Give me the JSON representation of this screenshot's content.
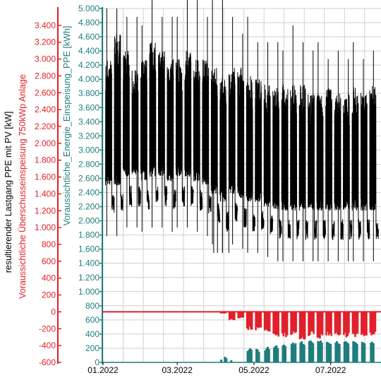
{
  "chart_data": {
    "type": "line",
    "x_ticks": [
      "01.2022",
      "03.2022",
      "05.2022",
      "07.2022"
    ],
    "x_range": [
      "2022-01-01",
      "2022-08-10"
    ],
    "axes": [
      {
        "id": "left_outer",
        "label": "resultierender Lastgang PPE mit PV [kW]",
        "color": "#000000",
        "range": [
          -600,
          3600
        ],
        "ticks": [
          -600,
          -400,
          -200,
          0,
          200,
          400,
          600,
          800,
          1000,
          1200,
          1400,
          1600,
          1800,
          2000,
          2200,
          2400,
          2600,
          2800,
          3000,
          3200,
          3400
        ]
      },
      {
        "id": "left_outer_red",
        "label": "Voraussichtliche Überschusseinspeisung 750kWp Anlage",
        "color": "#e0202a",
        "range": [
          -600,
          3600
        ],
        "ticks": [
          -600,
          -400,
          -200,
          0,
          200,
          400,
          600,
          800,
          1000,
          1200,
          1400,
          1600,
          1800,
          2000,
          2200,
          2400,
          2600,
          2800,
          3000,
          3200,
          3400
        ]
      },
      {
        "id": "right_inner",
        "label": "Voraussichtliche_Energie_Einspeisung_PPE [kWh]",
        "color": "#1f7d7d",
        "range": [
          0,
          5000
        ],
        "ticks": [
          0,
          200,
          400,
          600,
          800,
          1000,
          1200,
          1400,
          1600,
          1800,
          2000,
          2200,
          2400,
          2600,
          2800,
          3000,
          3200,
          3400,
          3600,
          3800,
          4000,
          4200,
          4400,
          4600,
          4800,
          5000
        ]
      }
    ],
    "tick_format": "German thousands separator",
    "grid": true,
    "series": [
      {
        "axis": "left_outer",
        "color": "#000000",
        "style": "dense load curve",
        "weekly_bands_kw": [
          {
            "week_start": "2022-01-03",
            "low": 1500,
            "high": 3000,
            "peak": 3600
          },
          {
            "week_start": "2022-01-10",
            "low": 1500,
            "high": 3300,
            "peak": 3600
          },
          {
            "week_start": "2022-01-17",
            "low": 1600,
            "high": 3100,
            "peak": 3500
          },
          {
            "week_start": "2022-01-24",
            "low": 1600,
            "high": 2900,
            "peak": 3500
          },
          {
            "week_start": "2022-01-31",
            "low": 1550,
            "high": 3000,
            "peak": 3400
          },
          {
            "week_start": "2022-02-07",
            "low": 1600,
            "high": 3200,
            "peak": 3800
          },
          {
            "week_start": "2022-02-14",
            "low": 1600,
            "high": 3100,
            "peak": 3500
          },
          {
            "week_start": "2022-02-21",
            "low": 1550,
            "high": 3000,
            "peak": 3500
          },
          {
            "week_start": "2022-02-28",
            "low": 1600,
            "high": 3000,
            "peak": 3500
          },
          {
            "week_start": "2022-03-07",
            "low": 1600,
            "high": 3100,
            "peak": 3800
          },
          {
            "week_start": "2022-03-14",
            "low": 1550,
            "high": 3000,
            "peak": 3800
          },
          {
            "week_start": "2022-03-21",
            "low": 1500,
            "high": 3000,
            "peak": 3500
          },
          {
            "week_start": "2022-03-28",
            "low": 1400,
            "high": 2900,
            "peak": 3800
          },
          {
            "week_start": "2022-04-04",
            "low": 1300,
            "high": 2800,
            "peak": 3800
          },
          {
            "week_start": "2022-04-11",
            "low": 1400,
            "high": 2900,
            "peak": 3500
          },
          {
            "week_start": "2022-04-18",
            "low": 1350,
            "high": 2900,
            "peak": 3300
          },
          {
            "week_start": "2022-04-25",
            "low": 1300,
            "high": 2800,
            "peak": 3500
          },
          {
            "week_start": "2022-05-02",
            "low": 1300,
            "high": 2800,
            "peak": 3200
          },
          {
            "week_start": "2022-05-09",
            "low": 1250,
            "high": 2700,
            "peak": 3200
          },
          {
            "week_start": "2022-05-16",
            "low": 1200,
            "high": 2700,
            "peak": 3200
          },
          {
            "week_start": "2022-05-23",
            "low": 1200,
            "high": 2700,
            "peak": 3100
          },
          {
            "week_start": "2022-05-30",
            "low": 1200,
            "high": 2700,
            "peak": 3400
          },
          {
            "week_start": "2022-06-06",
            "low": 1200,
            "high": 2700,
            "peak": 3200
          },
          {
            "week_start": "2022-06-13",
            "low": 1200,
            "high": 2600,
            "peak": 3100
          },
          {
            "week_start": "2022-06-20",
            "low": 1200,
            "high": 2600,
            "peak": 3200
          },
          {
            "week_start": "2022-06-27",
            "low": 1200,
            "high": 2700,
            "peak": 3000
          },
          {
            "week_start": "2022-07-04",
            "low": 1200,
            "high": 2600,
            "peak": 3100
          },
          {
            "week_start": "2022-07-11",
            "low": 1200,
            "high": 2600,
            "peak": 3000
          },
          {
            "week_start": "2022-07-18",
            "low": 1200,
            "high": 2700,
            "peak": 3200
          },
          {
            "week_start": "2022-07-25",
            "low": 1200,
            "high": 2600,
            "peak": 3000
          },
          {
            "week_start": "2022-08-01",
            "low": 1200,
            "high": 2700,
            "peak": 3100
          }
        ]
      },
      {
        "axis": "left_outer_red",
        "color": "#e0202a",
        "style": "surplus feed-in (negative)",
        "weekly_min_kw": [
          {
            "week_start": "2022-04-04",
            "min": -20
          },
          {
            "week_start": "2022-04-11",
            "min": -100
          },
          {
            "week_start": "2022-04-18",
            "min": -80
          },
          {
            "week_start": "2022-04-25",
            "min": -220
          },
          {
            "week_start": "2022-05-02",
            "min": -220
          },
          {
            "week_start": "2022-05-09",
            "min": -240
          },
          {
            "week_start": "2022-05-16",
            "min": -300
          },
          {
            "week_start": "2022-05-23",
            "min": -310
          },
          {
            "week_start": "2022-05-30",
            "min": -280
          },
          {
            "week_start": "2022-06-06",
            "min": -330
          },
          {
            "week_start": "2022-06-13",
            "min": -290
          },
          {
            "week_start": "2022-06-20",
            "min": -320
          },
          {
            "week_start": "2022-06-27",
            "min": -290
          },
          {
            "week_start": "2022-07-04",
            "min": -300
          },
          {
            "week_start": "2022-07-11",
            "min": -310
          },
          {
            "week_start": "2022-07-18",
            "min": -320
          },
          {
            "week_start": "2022-07-25",
            "min": -300
          },
          {
            "week_start": "2022-08-01",
            "min": -290
          }
        ]
      },
      {
        "axis": "right_inner",
        "color": "#1f7d7d",
        "style": "daily energy bars",
        "daily_kwh": [
          {
            "date": "2022-04-05",
            "value": 40
          },
          {
            "date": "2022-04-08",
            "value": 80
          },
          {
            "date": "2022-04-09",
            "value": 60
          },
          {
            "date": "2022-04-13",
            "value": 30
          },
          {
            "date": "2022-04-26",
            "value": 160
          },
          {
            "date": "2022-04-27",
            "value": 180
          },
          {
            "date": "2022-04-28",
            "value": 200
          },
          {
            "date": "2022-04-29",
            "value": 180
          },
          {
            "date": "2022-05-03",
            "value": 190
          },
          {
            "date": "2022-05-04",
            "value": 180
          },
          {
            "date": "2022-05-05",
            "value": 150
          },
          {
            "date": "2022-05-10",
            "value": 170
          },
          {
            "date": "2022-05-11",
            "value": 200
          },
          {
            "date": "2022-05-12",
            "value": 220
          },
          {
            "date": "2022-05-13",
            "value": 190
          },
          {
            "date": "2022-05-17",
            "value": 210
          },
          {
            "date": "2022-05-18",
            "value": 230
          },
          {
            "date": "2022-05-19",
            "value": 240
          },
          {
            "date": "2022-05-20",
            "value": 200
          },
          {
            "date": "2022-05-24",
            "value": 240
          },
          {
            "date": "2022-05-25",
            "value": 250
          },
          {
            "date": "2022-05-26",
            "value": 230
          },
          {
            "date": "2022-05-31",
            "value": 260
          },
          {
            "date": "2022-06-01",
            "value": 280
          },
          {
            "date": "2022-06-02",
            "value": 250
          },
          {
            "date": "2022-06-03",
            "value": 270
          },
          {
            "date": "2022-06-07",
            "value": 280
          },
          {
            "date": "2022-06-08",
            "value": 300
          },
          {
            "date": "2022-06-09",
            "value": 260
          },
          {
            "date": "2022-06-10",
            "value": 250
          },
          {
            "date": "2022-06-14",
            "value": 300
          },
          {
            "date": "2022-06-15",
            "value": 310
          },
          {
            "date": "2022-06-16",
            "value": 290
          },
          {
            "date": "2022-06-17",
            "value": 270
          },
          {
            "date": "2022-06-21",
            "value": 300
          },
          {
            "date": "2022-06-22",
            "value": 290
          },
          {
            "date": "2022-06-23",
            "value": 310
          },
          {
            "date": "2022-06-24",
            "value": 280
          },
          {
            "date": "2022-06-28",
            "value": 290
          },
          {
            "date": "2022-06-29",
            "value": 280
          },
          {
            "date": "2022-06-30",
            "value": 270
          },
          {
            "date": "2022-07-01",
            "value": 260
          },
          {
            "date": "2022-07-05",
            "value": 280
          },
          {
            "date": "2022-07-06",
            "value": 300
          },
          {
            "date": "2022-07-07",
            "value": 270
          },
          {
            "date": "2022-07-08",
            "value": 260
          },
          {
            "date": "2022-07-12",
            "value": 290
          },
          {
            "date": "2022-07-13",
            "value": 300
          },
          {
            "date": "2022-07-14",
            "value": 280
          },
          {
            "date": "2022-07-15",
            "value": 270
          },
          {
            "date": "2022-07-19",
            "value": 300
          },
          {
            "date": "2022-07-20",
            "value": 290
          },
          {
            "date": "2022-07-21",
            "value": 280
          },
          {
            "date": "2022-07-22",
            "value": 260
          },
          {
            "date": "2022-07-26",
            "value": 290
          },
          {
            "date": "2022-07-27",
            "value": 280
          },
          {
            "date": "2022-07-28",
            "value": 270
          },
          {
            "date": "2022-08-02",
            "value": 280
          },
          {
            "date": "2022-08-03",
            "value": 290
          },
          {
            "date": "2022-08-04",
            "value": 270
          }
        ]
      }
    ]
  }
}
